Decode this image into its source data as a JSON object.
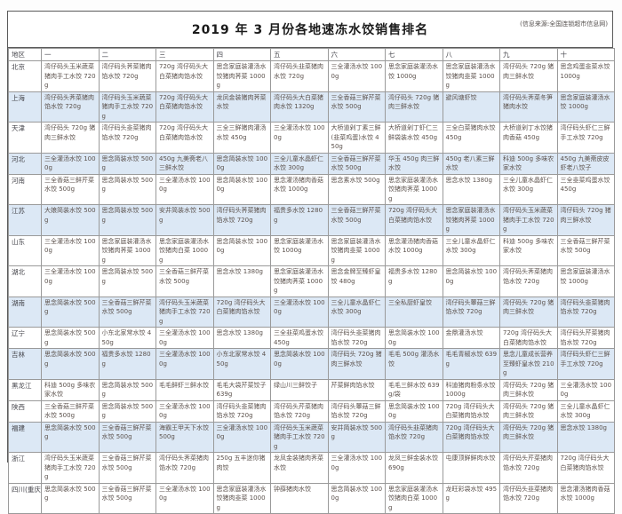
{
  "title": "2019 年 3 月份各地速冻水饺销售排名",
  "source_note": "(信息来源:全国连锁超市信息网)",
  "colors": {
    "highlight_row": "#dce8f5",
    "grid_border": "#9a9a9a",
    "outer_border": "#5a5a5a",
    "body_text": "#5c524d",
    "header_text": "#46464c"
  },
  "table": {
    "region_header": "地区",
    "rank_headers": [
      "一",
      "二",
      "三",
      "四",
      "五",
      "六",
      "七",
      "八",
      "九",
      "十"
    ],
    "rows": [
      {
        "region": "北京",
        "highlight": false,
        "items": [
          "湾仔码头玉米蔬菜猪肉手工水饺 720g",
          "湾仔码头荠菜猪肉馅水饺 720g",
          "720g 湾仔码头大白菜猪肉馅水饺",
          "思念家庭装灌汤水饺猪肉荠菜 1000g",
          "湾仔码头韭菜猪肉水饺 720g",
          "三全灌汤水饺 1000g",
          "思念家庭装灌汤水饺 1000g",
          "思念家庭装灌汤水饺猪肉韭菜 1000g",
          "湾仔码头 720g 猪肉三鲜水饺",
          "思念鸡蛋韭菜水饺 1000g"
        ]
      },
      {
        "region": "上海",
        "highlight": true,
        "items": [
          "湾仔码头荠菜猪肉馅水饺 720g",
          "湾仔码头玉米蔬菜猪肉手工水饺 720g",
          "720g 湾仔码头大白菜猪肉馅水饺",
          "龙凤金装猪肉荠菜水饺",
          "湾仔码头大白菜猪肉水饺 1320g",
          "三全香菇三鲜芹菜水饺 500g",
          "湾仔码头 720g 猪肉三鲜水饺",
          "避风塘虾饺",
          "湾仔码头荠菜冬笋猪肉水饺",
          "思念家庭装灌汤水饺 1000g"
        ]
      },
      {
        "region": "天津",
        "highlight": false,
        "items": [
          "湾仔码头 720g 猪肉三鲜水饺",
          "湾仔码头韭菜猪肉馅水饺 720g",
          "720g 湾仔码头大白菜猪肉馅水饺",
          "三全三鲜猪肉灌汤水饺 450g",
          "三全灌汤水饺 1000g",
          "大桥道剁丁素三鲜(韭菜鸡蛋)水饺 450g",
          "大桥道剁丁虾仁三鲜袋装水饺 450g",
          "三全白菜猪肉水饺 450g",
          "大桥道剁丁水饺猪肉香菇 450g",
          "湾仔码头虾仁三鲜手工水饺 720g"
        ]
      },
      {
        "region": "河北",
        "highlight": true,
        "items": [
          "三全灌汤水饺 1000g",
          "思念简装水饺 500g",
          "450g 九美斋老八三鲜水饺",
          "思念简装水饺 1000g",
          "三全儿童水晶虾仁水饺 300g",
          "三全香菇三鲜芹菜水饺 500g",
          "华玉 450g 肉三鲜水饺",
          "450g 老八素三鲜水饺",
          "科迪 500g 多味农家水饺",
          "450g 九美斋皮皮虾老八饺子"
        ]
      },
      {
        "region": "河南",
        "highlight": false,
        "items": [
          "三全香菇三鲜芹菜水饺 500g",
          "思念简装水饺 500g",
          "三全灌汤水饺 1000g",
          "思念简装水饺 1000g",
          "思念灌汤猪肉香菇水饺 1000g",
          "思念素水饺 500g",
          "思念家庭装灌汤水饺猪肉荠菜 1000g",
          "思念水饺 1380g",
          "三全儿童水晶虾仁水饺 300g",
          "三全韭菜鸡蛋水饺 450g"
        ]
      },
      {
        "region": "江苏",
        "highlight": true,
        "items": [
          "大娘简装水饺 500g",
          "思念简装水饺 500g",
          "安井简装水饺 500g",
          "湾仔码头荠菜猪肉馅水饺 720g",
          "福贵多水饺 1280g",
          "三全香菇三鲜芹菜水饺 500g",
          "720g 湾仔码头大白菜猪肉馅水饺",
          "思念家庭装灌汤水饺猪肉荠菜 1000g",
          "湾仔码头玉米蔬菜猪肉手工水饺 720g",
          "湾仔码头 720g 猪肉三鲜水饺"
        ]
      },
      {
        "region": "山东",
        "highlight": false,
        "items": [
          "三全灌汤水饺 1000g",
          "思念家庭装灌汤水饺猪肉荠菜 1000g",
          "思念家庭装灌汤水饺猪肉白菜 1000g",
          "思念简装水饺 1000g",
          "思念家庭装灌汤水饺 1000g",
          "思念家庭装灌汤水饺猪肉韭菜 1000g",
          "思念灌汤猪肉香菇水饺 1000g",
          "三全儿童水晶虾仁水饺 300g",
          "科迪 500g 多味农家水饺",
          "三全香菇三鲜芹菜水饺 500g"
        ]
      },
      {
        "region": "湖北",
        "highlight": false,
        "items": [
          "三全灌汤水饺 1000g",
          "思念简装水饺 500g",
          "三全香菇三鲜芹菜水饺 500g",
          "思念水饺 1380g",
          "思念家庭装灌汤水饺猪肉荠菜 1000g",
          "思念金牌至臻虾皇饺 480g",
          "福贵多水饺 1280g",
          "思念简装水饺 1000g",
          "湾仔码头荠菜猪肉馅水饺 720g",
          "思念家庭装灌汤水饺 1000g"
        ]
      },
      {
        "region": "湖南",
        "highlight": true,
        "items": [
          "思念简装水饺 500g",
          "三全香菇三鲜芹菜水饺 500g",
          "湾仔码头玉米蔬菜猪肉手工水饺 720g",
          "720g 湾仔码头大白菜猪肉馅水饺",
          "三全灌汤水饺 1000g",
          "三全儿童水晶虾仁水饺 300g",
          "三全私厨虾皇饺",
          "湾仔码头蕈菇三鲜馅水饺 720g",
          "湾仔码头 720g 猪肉三鲜水饺",
          "湾仔码头韭菜猪肉馅水饺 720g"
        ]
      },
      {
        "region": "辽宁",
        "highlight": false,
        "items": [
          "思念简装水饺 500g",
          "小东北家常水饺 450g",
          "三全灌汤水饺 1000g",
          "思念水饺 1380g",
          "三全韭菜鸡蛋水饺 450g",
          "湾仔码头韭菜猪肉馅水饺 720g",
          "思念简装水饺 1000g",
          "金鼎灌汤水饺",
          "720g 湾仔码头大白菜猪肉馅水饺",
          "湾仔码头芹菜猪肉馅水饺 720g"
        ]
      },
      {
        "region": "吉林",
        "highlight": true,
        "items": [
          "思念简装水饺 500g",
          "福贵多水饺 1280g",
          "三全灌汤水饺 1000g",
          "小东北家常水饺 450g",
          "思念简装水饺 1000g",
          "湾仔码头 720g 猪肉三鲜水饺",
          "毛毛 500g 灌汤水饺",
          "毛毛青椒水饺 639g",
          "思念儿童成长营养至臻虾皇水饺 210g",
          "湾仔码头虾仁三鲜手工水饺 720g"
        ]
      },
      {
        "region": "黑龙江",
        "highlight": false,
        "items": [
          "科迪 500g 多味农家水饺",
          "思念简装水饺 500g",
          "毛毛鲜虾三鲜水饺",
          "毛毛大袋芹菜饺子 639g",
          "绿山川三鲜饺子",
          "芹菜鲜肉馅水饺",
          "毛毛三鲜水饺 639g/袋",
          "科迪猪肉粉条水饺 1000g",
          "湾仔码头 720g 猪肉三鲜水饺",
          "三全灌汤水饺 1000g"
        ]
      },
      {
        "region": "陕西",
        "highlight": false,
        "items": [
          "三全香菇三鲜芹菜水饺 500g",
          "思念简装水饺 500g",
          "三全灌汤水饺 1000g",
          "湾仔码头韭菜猪肉馅水饺 720g",
          "湾仔码头芹菜猪肉馅水饺 720g",
          "湾仔码头蕈菇三鲜馅水饺 720g",
          "思念简装水饺 1000g",
          "720g 湾仔码头大白菜猪肉馅水饺",
          "湾仔码头 720g 猪肉三鲜水饺",
          "三全儿童水晶虾仁水饺 300g"
        ]
      },
      {
        "region": "福建",
        "highlight": true,
        "items": [
          "思念简装水饺 500g",
          "三全香菇三鲜芹菜水饺 500g",
          "海霸王甲天下水饺 500g",
          "三全灌汤水饺 1000g",
          "湾仔码头玉米蔬菜猪肉手工水饺 720g",
          "安井简装水饺 500g",
          "湾仔码头韭菜猪肉馅水饺 720g",
          "720g 湾仔码头大白菜猪肉馅水饺",
          "湾仔码头 720g 猪肉三鲜水饺",
          "思念水饺 1380g"
        ]
      },
      {
        "region": "浙江",
        "highlight": false,
        "items": [
          "湾仔码头玉米蔬菜猪肉手工水饺 720g",
          "三全香菇三鲜芹菜水饺 500g",
          "湾仔码头荠菜猪肉馅水饺 720g",
          "250g 五丰迷你猪肉饺",
          "龙凤金装猪肉荠菜水饺",
          "三全灌汤水饺 1000g",
          "龙凤三鲜金装水饺 690g",
          "屯康顶鲜鲜肉水饺",
          "湾仔码头芹菜猪肉馅水饺 720g",
          "720g 湾仔码头大白菜猪肉馅水饺"
        ]
      },
      {
        "region": "四川(重庆)",
        "highlight": false,
        "items": [
          "思念简装水饺 500g",
          "三全香菇三鲜芹菜水饺 500g",
          "三全灌汤水饺 1000g",
          "思念家庭装灌汤水饺猪肉韭菜 1000g",
          "钟薛猪肉水饺",
          "思念简装水饺 1000g",
          "思念家庭装灌汤水饺猪肉白菜 1000g",
          "龙旺彩袋水饺 495g",
          "湾仔码头韭菜猪肉馅水饺 720g",
          "思念灌汤猪肉香菇水饺 1000g"
        ]
      }
    ]
  }
}
